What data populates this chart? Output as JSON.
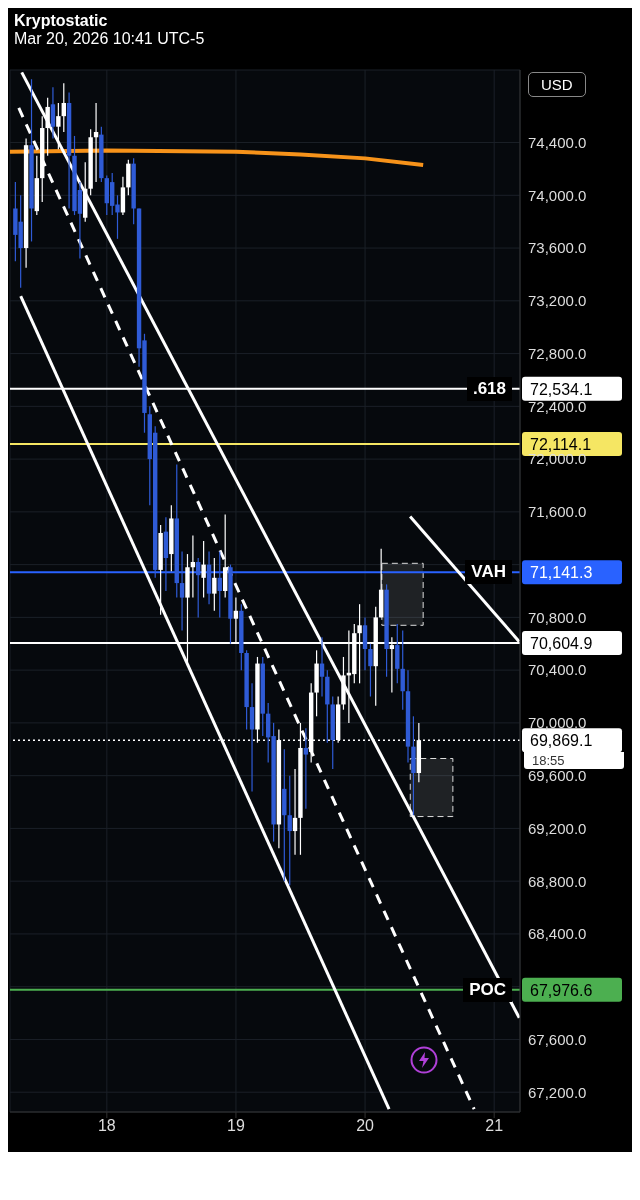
{
  "chart_data": {
    "type": "candlestick",
    "title": "Kryptostatic",
    "subtitle": "Mar 20, 2026 10:41 UTC-5",
    "annotations": [
      "USD",
      {
        "text": ".618",
        "y": 72534.1
      },
      {
        "text": "VAH",
        "y": 71141.3
      },
      "18:55",
      {
        "text": "POC",
        "y": 67976.6
      }
    ],
    "x": [
      17.292,
      17.333,
      17.375,
      17.417,
      17.458,
      17.5,
      17.542,
      17.583,
      17.625,
      17.667,
      17.708,
      17.75,
      17.792,
      17.833,
      17.875,
      17.917,
      17.958,
      18.0,
      18.042,
      18.083,
      18.125,
      18.167,
      18.208,
      18.25,
      18.292,
      18.333,
      18.375,
      18.417,
      18.458,
      18.5,
      18.542,
      18.583,
      18.625,
      18.667,
      18.708,
      18.75,
      18.792,
      18.833,
      18.875,
      18.917,
      18.958,
      19.0,
      19.042,
      19.083,
      19.125,
      19.167,
      19.208,
      19.25,
      19.292,
      19.333,
      19.375,
      19.417,
      19.458,
      19.5,
      19.542,
      19.583,
      19.625,
      19.667,
      19.708,
      19.75,
      19.792,
      19.833,
      19.875,
      19.917,
      19.958,
      20.0,
      20.042,
      20.083,
      20.125,
      20.167,
      20.208,
      20.25,
      20.292,
      20.333,
      20.375,
      20.417
    ],
    "ohlc": [
      [
        73900,
        74100,
        73500,
        73700
      ],
      [
        73800,
        74000,
        73300,
        73600
      ],
      [
        73600,
        74430,
        73450,
        74380
      ],
      [
        74380,
        74880,
        73650,
        73900
      ],
      [
        73880,
        74300,
        73850,
        74130
      ],
      [
        74130,
        74600,
        73950,
        74510
      ],
      [
        74510,
        74740,
        74300,
        74670
      ],
      [
        74690,
        74820,
        74430,
        74520
      ],
      [
        74520,
        74700,
        74350,
        74600
      ],
      [
        74600,
        74850,
        74480,
        74700
      ],
      [
        74700,
        74780,
        73900,
        74300
      ],
      [
        74300,
        74450,
        73850,
        73880
      ],
      [
        74040,
        74100,
        73520,
        73860
      ],
      [
        73830,
        74250,
        73800,
        74050
      ],
      [
        74050,
        74500,
        74000,
        74440
      ],
      [
        74440,
        74700,
        74100,
        74480
      ],
      [
        74460,
        74520,
        74100,
        74130
      ],
      [
        74130,
        74150,
        73850,
        73940
      ],
      [
        74100,
        74170,
        73850,
        73920
      ],
      [
        73930,
        74000,
        73670,
        73870
      ],
      [
        73870,
        74140,
        73850,
        74060
      ],
      [
        74060,
        74270,
        74000,
        74240
      ],
      [
        74240,
        74280,
        73780,
        73900
      ],
      [
        73900,
        73900,
        72700,
        72840
      ],
      [
        72900,
        72950,
        72200,
        72350
      ],
      [
        72340,
        72400,
        71650,
        72000
      ],
      [
        72200,
        72250,
        71100,
        71160
      ],
      [
        71160,
        71500,
        70820,
        71440
      ],
      [
        71450,
        71560,
        71000,
        71250
      ],
      [
        71280,
        71650,
        71150,
        71550
      ],
      [
        71550,
        71960,
        70950,
        71060
      ],
      [
        71060,
        71300,
        70700,
        70950
      ],
      [
        70950,
        71280,
        70460,
        71180
      ],
      [
        71180,
        71420,
        70950,
        71220
      ],
      [
        71220,
        71250,
        70800,
        71120
      ],
      [
        71100,
        71380,
        70950,
        71200
      ],
      [
        71200,
        71300,
        70900,
        70980
      ],
      [
        70980,
        71250,
        70850,
        71100
      ],
      [
        71100,
        71300,
        70800,
        71000
      ],
      [
        71000,
        71580,
        70950,
        71180
      ],
      [
        71180,
        71200,
        70600,
        70790
      ],
      [
        70790,
        70950,
        70600,
        70850
      ],
      [
        70850,
        70900,
        70400,
        70530
      ],
      [
        70530,
        70550,
        69950,
        70120
      ],
      [
        70120,
        70300,
        69480,
        69950
      ],
      [
        69950,
        70500,
        69850,
        70450
      ],
      [
        70450,
        70500,
        69900,
        70070
      ],
      [
        70070,
        70150,
        69700,
        69890
      ],
      [
        69900,
        70000,
        69100,
        69230
      ],
      [
        69230,
        69950,
        69050,
        69870
      ],
      [
        69500,
        69800,
        68800,
        69300
      ],
      [
        69300,
        69600,
        68770,
        69180
      ],
      [
        69180,
        69650,
        69000,
        69280
      ],
      [
        69280,
        70000,
        69000,
        69810
      ],
      [
        69810,
        69960,
        69350,
        69760
      ],
      [
        69780,
        70300,
        69700,
        70230
      ],
      [
        70230,
        70550,
        70050,
        70450
      ],
      [
        70450,
        70650,
        70200,
        70350
      ],
      [
        70350,
        70400,
        69850,
        70140
      ],
      [
        70140,
        70200,
        69650,
        69870
      ],
      [
        69870,
        70200,
        69850,
        70140
      ],
      [
        70140,
        70500,
        70100,
        70360
      ],
      [
        70360,
        70700,
        70000,
        70380
      ],
      [
        70370,
        70750,
        70300,
        70680
      ],
      [
        70680,
        70900,
        70300,
        70740
      ],
      [
        70740,
        70800,
        70400,
        70560
      ],
      [
        70560,
        70600,
        70200,
        70430
      ],
      [
        70430,
        70880,
        70130,
        70800
      ],
      [
        70800,
        71320,
        70800,
        71010
      ],
      [
        71010,
        71050,
        70350,
        70560
      ],
      [
        70560,
        70650,
        70230,
        70590
      ],
      [
        70590,
        70750,
        70300,
        70410
      ],
      [
        70410,
        70700,
        70100,
        70240
      ],
      [
        70240,
        70400,
        69700,
        69820
      ],
      [
        69820,
        70050,
        69300,
        69620
      ],
      [
        69620,
        70000,
        69550,
        69869.1
      ]
    ],
    "colors": [
      "#2f5bd6",
      "#2f5bd6",
      "#ffffff",
      "#2f5bd6",
      "#ffffff",
      "#ffffff",
      "#ffffff",
      "#2f5bd6",
      "#ffffff",
      "#ffffff",
      "#2f5bd6",
      "#2f5bd6",
      "#2f5bd6",
      "#ffffff",
      "#ffffff",
      "#ffffff",
      "#2f5bd6",
      "#2f5bd6",
      "#2f5bd6",
      "#2f5bd6",
      "#ffffff",
      "#ffffff",
      "#2f5bd6",
      "#2f5bd6",
      "#2f5bd6",
      "#2f5bd6",
      "#2f5bd6",
      "#ffffff",
      "#2f5bd6",
      "#ffffff",
      "#2f5bd6",
      "#2f5bd6",
      "#ffffff",
      "#ffffff",
      "#2f5bd6",
      "#ffffff",
      "#2f5bd6",
      "#ffffff",
      "#2f5bd6",
      "#ffffff",
      "#2f5bd6",
      "#ffffff",
      "#2f5bd6",
      "#2f5bd6",
      "#2f5bd6",
      "#ffffff",
      "#2f5bd6",
      "#2f5bd6",
      "#2f5bd6",
      "#ffffff",
      "#2f5bd6",
      "#2f5bd6",
      "#ffffff",
      "#ffffff",
      "#2f5bd6",
      "#ffffff",
      "#ffffff",
      "#2f5bd6",
      "#2f5bd6",
      "#2f5bd6",
      "#ffffff",
      "#ffffff",
      "#ffffff",
      "#ffffff",
      "#ffffff",
      "#2f5bd6",
      "#2f5bd6",
      "#ffffff",
      "#ffffff",
      "#2f5bd6",
      "#ffffff",
      "#2f5bd6",
      "#2f5bd6",
      "#2f5bd6",
      "#2f5bd6",
      "#ffffff"
    ],
    "series": [
      {
        "type": "line",
        "color": "#f7931a",
        "x": [
          17.25,
          18.0,
          19.0,
          19.5,
          20.0,
          20.45
        ],
        "values": [
          74330,
          74340,
          74330,
          74310,
          74280,
          74230
        ]
      },
      {
        "type": "line",
        "color": "#ffffff",
        "line_style": "solid",
        "x": [
          17.341,
          21.194
        ],
        "values": [
          74932,
          67764
        ]
      },
      {
        "type": "line",
        "color": "#ffffff",
        "line_style": "solid",
        "x": [
          17.333,
          20.186
        ],
        "values": [
          73236,
          67071
        ]
      },
      {
        "type": "line",
        "color": "#ffffff",
        "line_style": "dashed",
        "x": [
          17.318,
          20.845
        ],
        "values": [
          74662,
          67071
        ]
      },
      {
        "type": "line",
        "color": "#ffffff",
        "line_style": "solid",
        "x": [
          20.349,
          21.194
        ],
        "values": [
          71564,
          70616
        ]
      }
    ],
    "ref_lines": [
      {
        "axis": "y",
        "value": 72534.1,
        "label": "72,534.1",
        "color": "#ffffff",
        "line_style": "solid"
      },
      {
        "axis": "y",
        "value": 72114.1,
        "label": "72,114.1",
        "color": "#f5e663",
        "line_style": "solid"
      },
      {
        "axis": "y",
        "value": 71141.3,
        "label": "71,141.3",
        "color": "#2962ff",
        "line_style": "solid"
      },
      {
        "axis": "y",
        "value": 70604.9,
        "label": "70,604.9",
        "color": "#ffffff",
        "line_style": "solid"
      },
      {
        "axis": "y",
        "value": 69869.1,
        "label": "69,869.1",
        "color": "#ffffff",
        "line_style": "dotted"
      },
      {
        "axis": "y",
        "value": 67976.6,
        "label": "67,976.6",
        "color": "#4caf50",
        "line_style": "solid"
      }
    ],
    "marker": "none",
    "grid": true,
    "xlim": [
      17.25,
      21.2
    ],
    "xticks": [
      18,
      19,
      20,
      21
    ],
    "ylim": [
      67050,
      74950
    ],
    "yticks": [
      {
        "value": 67200,
        "label": "67,200.0"
      },
      {
        "value": 67600,
        "label": "67,600.0"
      },
      {
        "value": 68000,
        "label": null
      },
      {
        "value": 68400,
        "label": "68,400.0"
      },
      {
        "value": 68800,
        "label": "68,800.0"
      },
      {
        "value": 69200,
        "label": "69,200.0"
      },
      {
        "value": 69600,
        "label": "69,600.0"
      },
      {
        "value": 70000,
        "label": "70,000.0"
      },
      {
        "value": 70400,
        "label": "70,400.0"
      },
      {
        "value": 70800,
        "label": "70,800.0"
      },
      {
        "value": 71200,
        "label": null
      },
      {
        "value": 71600,
        "label": "71,600.0"
      },
      {
        "value": 72000,
        "label": "72,000.0"
      },
      {
        "value": 72400,
        "label": "72,400.0"
      },
      {
        "value": 72800,
        "label": "72,800.0"
      },
      {
        "value": 73200,
        "label": "73,200.0"
      },
      {
        "value": 73600,
        "label": "73,600.0"
      },
      {
        "value": 74000,
        "label": "74,000.0"
      },
      {
        "value": 74400,
        "label": "74,400.0"
      }
    ]
  }
}
